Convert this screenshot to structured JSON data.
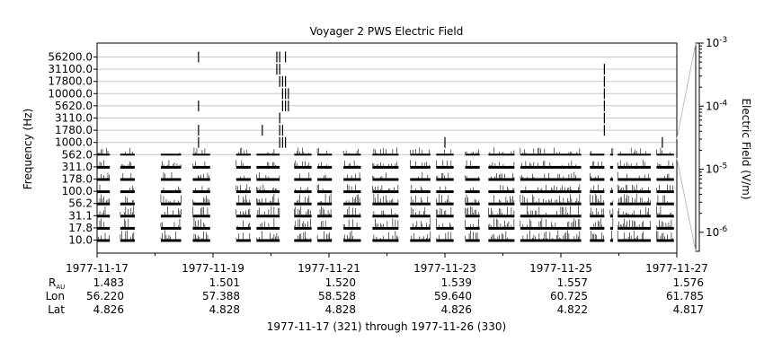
{
  "chart_data": {
    "type": "spectrogram",
    "title": "Voyager 2 PWS Electric Field",
    "ylabel": "Frequency (Hz)",
    "colorbar_label": "Electric Field (V/m)",
    "y_scale": "log",
    "channels": [
      {
        "label": "10.0",
        "hz": 10.0
      },
      {
        "label": "17.8",
        "hz": 17.8
      },
      {
        "label": "31.1",
        "hz": 31.1
      },
      {
        "label": "56.2",
        "hz": 56.2
      },
      {
        "label": "100.0",
        "hz": 100.0
      },
      {
        "label": "178.0",
        "hz": 178.0
      },
      {
        "label": "311.0",
        "hz": 311.0
      },
      {
        "label": "562.0",
        "hz": 562.0
      },
      {
        "label": "1000.0",
        "hz": 1000.0
      },
      {
        "label": "1780.0",
        "hz": 1780.0
      },
      {
        "label": "3110.0",
        "hz": 3110.0
      },
      {
        "label": "5620.0",
        "hz": 5620.0
      },
      {
        "label": "10000.0",
        "hz": 10000.0
      },
      {
        "label": "17800.0",
        "hz": 17800.0
      },
      {
        "label": "31100.0",
        "hz": 31100.0
      },
      {
        "label": "56200.0",
        "hz": 56200.0
      }
    ],
    "x_range_days": [
      "1977-11-17",
      "1977-11-27"
    ],
    "x_ticks": [
      {
        "date": "1977-11-17",
        "label": "1977-11-17",
        "rau": "1.483",
        "lon": "56.220",
        "lat": "4.826"
      },
      {
        "date": "1977-11-19",
        "label": "1977-11-19",
        "rau": "1.501",
        "lon": "57.388",
        "lat": "4.828"
      },
      {
        "date": "1977-11-21",
        "label": "1977-11-21",
        "rau": "1.520",
        "lon": "58.528",
        "lat": "4.828"
      },
      {
        "date": "1977-11-23",
        "label": "1977-11-23",
        "rau": "1.539",
        "lon": "59.640",
        "lat": "4.826"
      },
      {
        "date": "1977-11-25",
        "label": "1977-11-25",
        "rau": "1.557",
        "lon": "60.725",
        "lat": "4.822"
      },
      {
        "date": "1977-11-27",
        "label": "1977-11-27",
        "rau": "1.576",
        "lon": "61.785",
        "lat": "4.817"
      }
    ],
    "ephemeris_labels": {
      "r": "R",
      "r_sub": "AU",
      "lon": "Lon",
      "lat": "Lat"
    },
    "colorbar": {
      "scale": "log",
      "range": [
        5e-07,
        0.001
      ],
      "ticks": [
        {
          "value": 0.001,
          "base": "10",
          "exp": "-3"
        },
        {
          "value": 0.0001,
          "base": "10",
          "exp": "-4"
        },
        {
          "value": 1e-05,
          "base": "10",
          "exp": "-5"
        },
        {
          "value": 1e-06,
          "base": "10",
          "exp": "-6"
        }
      ]
    },
    "data_segments_days": [
      [
        0.0,
        0.22
      ],
      [
        0.4,
        0.65
      ],
      [
        1.1,
        1.45
      ],
      [
        1.65,
        1.95
      ],
      [
        2.4,
        2.65
      ],
      [
        2.75,
        3.15
      ],
      [
        3.4,
        3.7
      ],
      [
        3.8,
        4.05
      ],
      [
        4.25,
        4.55
      ],
      [
        4.75,
        5.2
      ],
      [
        5.4,
        5.75
      ],
      [
        5.85,
        6.15
      ],
      [
        6.35,
        6.6
      ],
      [
        6.75,
        7.2
      ],
      [
        7.3,
        8.35
      ],
      [
        8.5,
        8.75
      ],
      [
        8.85,
        8.9
      ],
      [
        8.98,
        9.55
      ],
      [
        9.65,
        9.95
      ]
    ],
    "bursts": [
      {
        "day": 1.75,
        "channels": [
          15
        ]
      },
      {
        "day": 1.75,
        "channels": [
          11,
          9,
          8
        ]
      },
      {
        "day": 2.85,
        "channels": [
          9
        ]
      },
      {
        "day": 3.1,
        "channels": [
          15,
          14
        ]
      },
      {
        "day": 3.15,
        "channels": [
          15,
          14,
          13,
          10,
          9,
          8
        ]
      },
      {
        "day": 3.2,
        "channels": [
          13,
          12,
          11,
          9,
          8
        ]
      },
      {
        "day": 3.25,
        "channels": [
          15,
          13,
          12,
          11,
          8
        ]
      },
      {
        "day": 3.3,
        "channels": [
          12,
          11
        ]
      },
      {
        "day": 6.0,
        "channels": [
          8
        ]
      },
      {
        "day": 8.75,
        "channels": [
          14,
          13,
          12,
          11,
          10,
          9
        ]
      },
      {
        "day": 9.75,
        "channels": [
          8
        ]
      }
    ],
    "xlabel": "1977-11-17 (321) through 1977-11-26 (330)"
  }
}
